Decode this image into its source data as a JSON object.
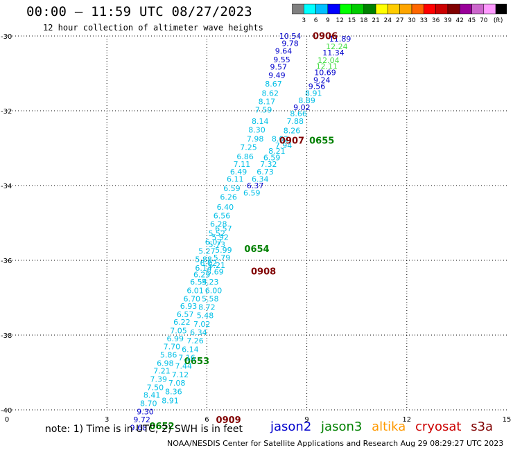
{
  "header": {
    "title": "00:00 – 11:59 UTC 08/27/2023",
    "subtitle": "12 hour collection of altimeter wave heights"
  },
  "legend": {
    "unit": "(ft)",
    "swatches": [
      {
        "color": "#808080",
        "label": ""
      },
      {
        "color": "#00ffff",
        "label": "3"
      },
      {
        "color": "#00bfff",
        "label": "6"
      },
      {
        "color": "#0000ff",
        "label": "9"
      },
      {
        "color": "#00ff00",
        "label": "12"
      },
      {
        "color": "#00cc00",
        "label": "15"
      },
      {
        "color": "#008000",
        "label": "18"
      },
      {
        "color": "#ffff00",
        "label": "21"
      },
      {
        "color": "#ffcc00",
        "label": "24"
      },
      {
        "color": "#ffa500",
        "label": "27"
      },
      {
        "color": "#ff6600",
        "label": "30"
      },
      {
        "color": "#ff0000",
        "label": "33"
      },
      {
        "color": "#cc0000",
        "label": "36"
      },
      {
        "color": "#800000",
        "label": "39"
      },
      {
        "color": "#990099",
        "label": "42"
      },
      {
        "color": "#cc66cc",
        "label": "45"
      },
      {
        "color": "#ff99ff",
        "label": "70"
      },
      {
        "color": "#000000",
        "label": ""
      }
    ]
  },
  "chart_data": {
    "type": "scatter",
    "xlim": [
      0,
      15
    ],
    "ylim": [
      -40,
      -30
    ],
    "xticks": [
      "0",
      "3",
      "6",
      "9",
      "12",
      "15"
    ],
    "yticks": [
      "-30",
      "-32",
      "-34",
      "-36",
      "-38",
      "-40"
    ],
    "xtick_values": [
      0,
      3,
      6,
      9,
      12,
      15
    ],
    "ytick_values": [
      -30,
      -32,
      -34,
      -36,
      -38,
      -40
    ],
    "grid": true,
    "colors": {
      "cyan": "#00bfe6",
      "blue": "#0000cc",
      "green": "#44dd44",
      "darkgreen": "#008000",
      "darkred": "#800000"
    },
    "points": [
      {
        "x": 8.5,
        "y": -30.07,
        "t": "10.54",
        "c": "blue"
      },
      {
        "x": 10.0,
        "y": -30.15,
        "t": "11.89",
        "c": "blue"
      },
      {
        "x": 8.5,
        "y": -30.27,
        "t": "9.78",
        "c": "blue"
      },
      {
        "x": 9.9,
        "y": -30.35,
        "t": "12.24",
        "c": "green"
      },
      {
        "x": 8.3,
        "y": -30.47,
        "t": "9.64",
        "c": "blue"
      },
      {
        "x": 9.8,
        "y": -30.52,
        "t": "11.34",
        "c": "blue"
      },
      {
        "x": 8.25,
        "y": -30.7,
        "t": "9.55",
        "c": "blue"
      },
      {
        "x": 9.65,
        "y": -30.72,
        "t": "12.04",
        "c": "green"
      },
      {
        "x": 8.15,
        "y": -30.9,
        "t": "9.57",
        "c": "blue"
      },
      {
        "x": 9.6,
        "y": -30.88,
        "t": "12.11",
        "c": "green"
      },
      {
        "x": 8.1,
        "y": -31.12,
        "t": "9.49",
        "c": "blue"
      },
      {
        "x": 9.55,
        "y": -31.05,
        "t": "10.69",
        "c": "blue"
      },
      {
        "x": 9.45,
        "y": -31.25,
        "t": "9.24",
        "c": "blue"
      },
      {
        "x": 8.0,
        "y": -31.35,
        "t": "8.67",
        "c": "cyan"
      },
      {
        "x": 9.3,
        "y": -31.42,
        "t": "9.56",
        "c": "blue"
      },
      {
        "x": 7.9,
        "y": -31.6,
        "t": "8.62",
        "c": "cyan"
      },
      {
        "x": 9.2,
        "y": -31.6,
        "t": "8.91",
        "c": "cyan"
      },
      {
        "x": 7.8,
        "y": -31.82,
        "t": "8.17",
        "c": "cyan"
      },
      {
        "x": 9.0,
        "y": -31.8,
        "t": "8.89",
        "c": "cyan"
      },
      {
        "x": 8.85,
        "y": -31.98,
        "t": "9.02",
        "c": "blue"
      },
      {
        "x": 7.7,
        "y": -32.05,
        "t": "7.59",
        "c": "cyan"
      },
      {
        "x": 8.75,
        "y": -32.15,
        "t": "8.66",
        "c": "cyan"
      },
      {
        "x": 7.6,
        "y": -32.35,
        "t": "8.14",
        "c": "cyan"
      },
      {
        "x": 8.65,
        "y": -32.35,
        "t": "7.88",
        "c": "cyan"
      },
      {
        "x": 7.5,
        "y": -32.58,
        "t": "8.30",
        "c": "cyan"
      },
      {
        "x": 8.55,
        "y": -32.6,
        "t": "8.26",
        "c": "cyan"
      },
      {
        "x": 7.45,
        "y": -32.82,
        "t": "7.98",
        "c": "cyan"
      },
      {
        "x": 8.2,
        "y": -32.82,
        "t": "8.02",
        "c": "cyan"
      },
      {
        "x": 8.3,
        "y": -33.0,
        "t": "7.94",
        "c": "cyan"
      },
      {
        "x": 7.25,
        "y": -33.05,
        "t": "7.25",
        "c": "cyan"
      },
      {
        "x": 8.1,
        "y": -33.15,
        "t": "8.21",
        "c": "cyan"
      },
      {
        "x": 7.15,
        "y": -33.3,
        "t": "6.86",
        "c": "cyan"
      },
      {
        "x": 7.95,
        "y": -33.32,
        "t": "6.59",
        "c": "cyan"
      },
      {
        "x": 7.05,
        "y": -33.5,
        "t": "7.11",
        "c": "cyan"
      },
      {
        "x": 7.85,
        "y": -33.5,
        "t": "7.32",
        "c": "cyan"
      },
      {
        "x": 6.95,
        "y": -33.7,
        "t": "6.49",
        "c": "cyan"
      },
      {
        "x": 7.75,
        "y": -33.7,
        "t": "6.73",
        "c": "cyan"
      },
      {
        "x": 6.85,
        "y": -33.9,
        "t": "6.11",
        "c": "cyan"
      },
      {
        "x": 7.6,
        "y": -33.9,
        "t": "6.34",
        "c": "cyan"
      },
      {
        "x": 7.45,
        "y": -34.07,
        "t": "6.37",
        "c": "blue"
      },
      {
        "x": 6.75,
        "y": -34.15,
        "t": "6.59",
        "c": "cyan"
      },
      {
        "x": 7.35,
        "y": -34.27,
        "t": "6.59",
        "c": "cyan"
      },
      {
        "x": 6.65,
        "y": -34.38,
        "t": "6.26",
        "c": "cyan"
      },
      {
        "x": 6.55,
        "y": -34.65,
        "t": "6.40",
        "c": "cyan"
      },
      {
        "x": 6.45,
        "y": -34.88,
        "t": "6.56",
        "c": "cyan"
      },
      {
        "x": 6.35,
        "y": -35.1,
        "t": "6.28",
        "c": "cyan"
      },
      {
        "x": 6.3,
        "y": -35.35,
        "t": "5.52",
        "c": "cyan"
      },
      {
        "x": 6.5,
        "y": -35.22,
        "t": "6.57",
        "c": "cyan"
      },
      {
        "x": 6.4,
        "y": -35.45,
        "t": "5.92",
        "c": "cyan"
      },
      {
        "x": 6.2,
        "y": -35.58,
        "t": "6.07",
        "c": "cyan"
      },
      {
        "x": 6.3,
        "y": -35.65,
        "t": "5.73",
        "c": "cyan"
      },
      {
        "x": 6.0,
        "y": -35.82,
        "t": "5.27",
        "c": "cyan"
      },
      {
        "x": 6.5,
        "y": -35.8,
        "t": "5.99",
        "c": "cyan"
      },
      {
        "x": 7.5,
        "y": -35.78,
        "t": "0654",
        "c": "darkgreen",
        "b": 1
      },
      {
        "x": 5.9,
        "y": -36.05,
        "t": "5.88",
        "c": "cyan"
      },
      {
        "x": 6.45,
        "y": -36.0,
        "t": "5.79",
        "c": "cyan"
      },
      {
        "x": 6.3,
        "y": -36.2,
        "t": "5.21",
        "c": "cyan"
      },
      {
        "x": 6.05,
        "y": -36.15,
        "t": "6.02",
        "c": "cyan"
      },
      {
        "x": 5.9,
        "y": -36.28,
        "t": "6.14",
        "c": "cyan"
      },
      {
        "x": 6.25,
        "y": -36.38,
        "t": "5.69",
        "c": "cyan"
      },
      {
        "x": 7.7,
        "y": -36.38,
        "t": "0908",
        "c": "darkred",
        "b": 1
      },
      {
        "x": 5.85,
        "y": -36.45,
        "t": "6.29",
        "c": "cyan"
      },
      {
        "x": 5.75,
        "y": -36.65,
        "t": "6.54",
        "c": "cyan"
      },
      {
        "x": 6.1,
        "y": -36.65,
        "t": "5.23",
        "c": "cyan"
      },
      {
        "x": 5.65,
        "y": -36.88,
        "t": "6.01",
        "c": "cyan"
      },
      {
        "x": 6.2,
        "y": -36.88,
        "t": "6.00",
        "c": "cyan"
      },
      {
        "x": 5.55,
        "y": -37.1,
        "t": "6.70",
        "c": "cyan"
      },
      {
        "x": 6.1,
        "y": -37.1,
        "t": "5.58",
        "c": "cyan"
      },
      {
        "x": 5.45,
        "y": -37.3,
        "t": "6.93",
        "c": "cyan"
      },
      {
        "x": 6.0,
        "y": -37.32,
        "t": "8.72",
        "c": "cyan"
      },
      {
        "x": 5.35,
        "y": -37.52,
        "t": "6.57",
        "c": "cyan"
      },
      {
        "x": 5.95,
        "y": -37.55,
        "t": "5.48",
        "c": "cyan"
      },
      {
        "x": 5.25,
        "y": -37.72,
        "t": "6.22",
        "c": "cyan"
      },
      {
        "x": 5.85,
        "y": -37.78,
        "t": "7.02",
        "c": "cyan"
      },
      {
        "x": 5.15,
        "y": -37.95,
        "t": "7.05",
        "c": "cyan"
      },
      {
        "x": 5.05,
        "y": -38.17,
        "t": "6.99",
        "c": "cyan"
      },
      {
        "x": 5.75,
        "y": -38.0,
        "t": "6.34",
        "c": "cyan"
      },
      {
        "x": 4.95,
        "y": -38.38,
        "t": "7.70",
        "c": "cyan"
      },
      {
        "x": 5.65,
        "y": -38.22,
        "t": "7.26",
        "c": "cyan"
      },
      {
        "x": 5.5,
        "y": -38.45,
        "t": "6.14",
        "c": "cyan"
      },
      {
        "x": 4.85,
        "y": -38.6,
        "t": "5.86",
        "c": "cyan"
      },
      {
        "x": 4.75,
        "y": -38.82,
        "t": "6.98",
        "c": "cyan"
      },
      {
        "x": 5.7,
        "y": -38.78,
        "t": "0653",
        "c": "darkgreen",
        "b": 1
      },
      {
        "x": 5.4,
        "y": -38.68,
        "t": "7.16",
        "c": "cyan"
      },
      {
        "x": 4.65,
        "y": -39.03,
        "t": "7.21",
        "c": "cyan"
      },
      {
        "x": 5.3,
        "y": -38.9,
        "t": "7.44",
        "c": "cyan"
      },
      {
        "x": 4.55,
        "y": -39.25,
        "t": "7.39",
        "c": "cyan"
      },
      {
        "x": 4.45,
        "y": -39.47,
        "t": "7.50",
        "c": "cyan"
      },
      {
        "x": 5.2,
        "y": -39.13,
        "t": "7.12",
        "c": "cyan"
      },
      {
        "x": 4.35,
        "y": -39.68,
        "t": "8.41",
        "c": "cyan"
      },
      {
        "x": 5.1,
        "y": -39.35,
        "t": "7.08",
        "c": "cyan"
      },
      {
        "x": 4.25,
        "y": -39.9,
        "t": "8.70",
        "c": "cyan"
      },
      {
        "x": 4.15,
        "y": -40.12,
        "t": "9.30",
        "c": "blue"
      },
      {
        "x": 5.0,
        "y": -39.58,
        "t": "8.36",
        "c": "cyan"
      },
      {
        "x": 4.05,
        "y": -40.33,
        "t": "9.72",
        "c": "blue"
      },
      {
        "x": 4.9,
        "y": -39.82,
        "t": "8.91",
        "c": "cyan"
      },
      {
        "x": 3.95,
        "y": -40.55,
        "t": "9.68",
        "c": "blue"
      },
      {
        "x": 4.65,
        "y": -40.52,
        "t": "0652",
        "c": "darkgreen",
        "b": 1
      },
      {
        "x": 6.65,
        "y": -40.35,
        "t": "0909",
        "c": "darkred",
        "b": 1
      },
      {
        "x": 9.55,
        "y": -30.08,
        "t": "0906",
        "c": "darkred",
        "b": 1
      },
      {
        "x": 8.55,
        "y": -32.88,
        "t": "0907",
        "c": "darkred",
        "b": 1
      },
      {
        "x": 9.45,
        "y": -32.88,
        "t": "0655",
        "c": "darkgreen",
        "b": 1
      }
    ]
  },
  "footer": {
    "note": "note: 1) Time is in UTC; 2) SWH is in feet",
    "credit": "NOAA/NESDIS Center for Satellite Applications and Research    Aug 29 08:29:27 UTC 2023",
    "satellites": [
      {
        "name": "jason2",
        "color": "#0000cc"
      },
      {
        "name": "jason3",
        "color": "#008000"
      },
      {
        "name": "altika",
        "color": "#ff9900"
      },
      {
        "name": "cryosat",
        "color": "#cc0000"
      },
      {
        "name": "s3a",
        "color": "#800000"
      }
    ]
  }
}
